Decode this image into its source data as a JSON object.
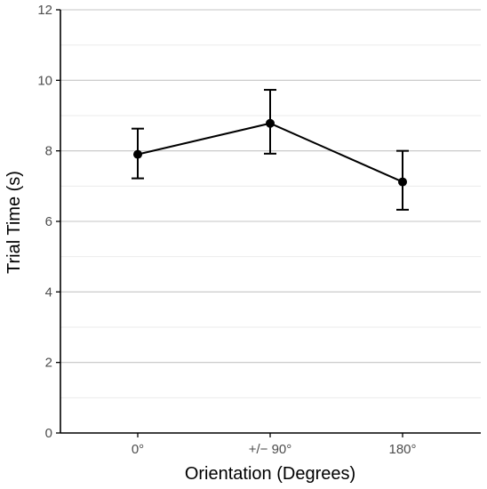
{
  "chart_data": {
    "type": "line",
    "title": "",
    "xlabel": "Orientation (Degrees)",
    "ylabel": "Trial Time (s)",
    "categories": [
      "0°",
      "+/− 90°",
      "180°"
    ],
    "series": [
      {
        "values": [
          7.9,
          8.78,
          7.12
        ],
        "error_low": [
          7.22,
          7.92,
          6.33
        ],
        "error_high": [
          8.63,
          9.73,
          8.0
        ]
      }
    ],
    "ylim": [
      0,
      12
    ],
    "yticks": [
      0,
      2,
      4,
      6,
      8,
      10,
      12
    ],
    "ytick_labels": [
      "0",
      "2",
      "4",
      "6",
      "8",
      "10",
      "12"
    ],
    "grid": "horizontal",
    "legend": "none",
    "colors": {
      "line": "#000000",
      "major_grid": "#c4c4c4",
      "minor_grid": "#ebebeb",
      "axis": "#000000",
      "tick_text": "#4d4d4d"
    }
  }
}
